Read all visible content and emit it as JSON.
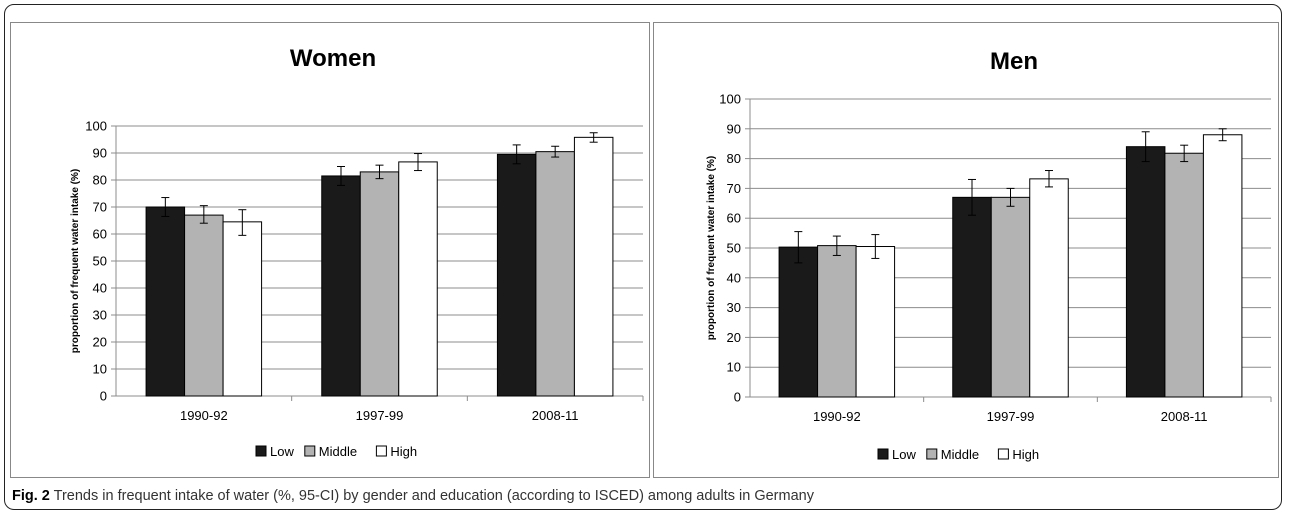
{
  "caption": {
    "label": "Fig. 2",
    "text": "Trends in frequent intake of water (%, 95-CI) by gender and education (according to ISCED) among adults in Germany"
  },
  "colors": {
    "Low": "#1a1a1a",
    "Middle": "#b3b3b3",
    "High": "#ffffff"
  },
  "chart_data": [
    {
      "type": "bar",
      "title": "Women",
      "ylabel": "proportion of frequent water intake (%)",
      "xlabel": "",
      "categories": [
        "1990-92",
        "1997-99",
        "2008-11"
      ],
      "ylim": [
        0,
        100
      ],
      "yticks": [
        0,
        10,
        20,
        30,
        40,
        50,
        60,
        70,
        80,
        90,
        100
      ],
      "grid": true,
      "legend": "bottom",
      "series": [
        {
          "name": "Low",
          "values": [
            70,
            81.5,
            89.5
          ],
          "ci_low": [
            66.5,
            78,
            86
          ],
          "ci_high": [
            73.5,
            85,
            93
          ]
        },
        {
          "name": "Middle",
          "values": [
            67,
            83,
            90.5
          ],
          "ci_low": [
            64,
            80.5,
            88.5
          ],
          "ci_high": [
            70.5,
            85.5,
            92.5
          ]
        },
        {
          "name": "High",
          "values": [
            64.5,
            86.7,
            95.8
          ],
          "ci_low": [
            59.5,
            83.5,
            94
          ],
          "ci_high": [
            69,
            89.8,
            97.5
          ]
        }
      ]
    },
    {
      "type": "bar",
      "title": "Men",
      "ylabel": "proportion of frequent water intake (%)",
      "xlabel": "",
      "categories": [
        "1990-92",
        "1997-99",
        "2008-11"
      ],
      "ylim": [
        0,
        100
      ],
      "yticks": [
        0,
        10,
        20,
        30,
        40,
        50,
        60,
        70,
        80,
        90,
        100
      ],
      "grid": true,
      "legend": "bottom",
      "series": [
        {
          "name": "Low",
          "values": [
            50.3,
            67,
            84
          ],
          "ci_low": [
            45,
            61,
            79
          ],
          "ci_high": [
            55.5,
            73,
            89
          ]
        },
        {
          "name": "Middle",
          "values": [
            50.8,
            67,
            81.8
          ],
          "ci_low": [
            47.5,
            64,
            79
          ],
          "ci_high": [
            54,
            70,
            84.5
          ]
        },
        {
          "name": "High",
          "values": [
            50.5,
            73.2,
            88
          ],
          "ci_low": [
            46.5,
            70.5,
            86
          ],
          "ci_high": [
            54.5,
            76,
            90
          ]
        }
      ]
    }
  ]
}
